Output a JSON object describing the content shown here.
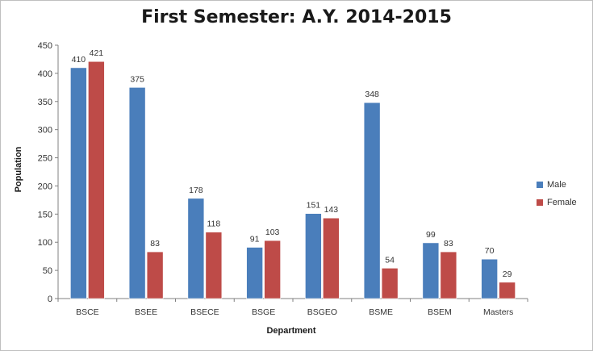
{
  "chart_data": {
    "type": "bar",
    "title": "First Semester: A.Y. 2014-2015",
    "xlabel": "Department",
    "ylabel": "Population",
    "categories": [
      "BSCE",
      "BSEE",
      "BSECE",
      "BSGE",
      "BSGEO",
      "BSME",
      "BSEM",
      "Masters"
    ],
    "series": [
      {
        "name": "Male",
        "color": "#4a7ebb",
        "values": [
          410,
          375,
          178,
          91,
          151,
          348,
          99,
          70
        ]
      },
      {
        "name": "Female",
        "color": "#be4b48",
        "values": [
          421,
          83,
          118,
          103,
          143,
          54,
          83,
          29
        ]
      }
    ],
    "ylim": [
      0,
      450
    ],
    "yticks": [
      0,
      50,
      100,
      150,
      200,
      250,
      300,
      350,
      400,
      450
    ],
    "grid": false,
    "legend": "right"
  }
}
